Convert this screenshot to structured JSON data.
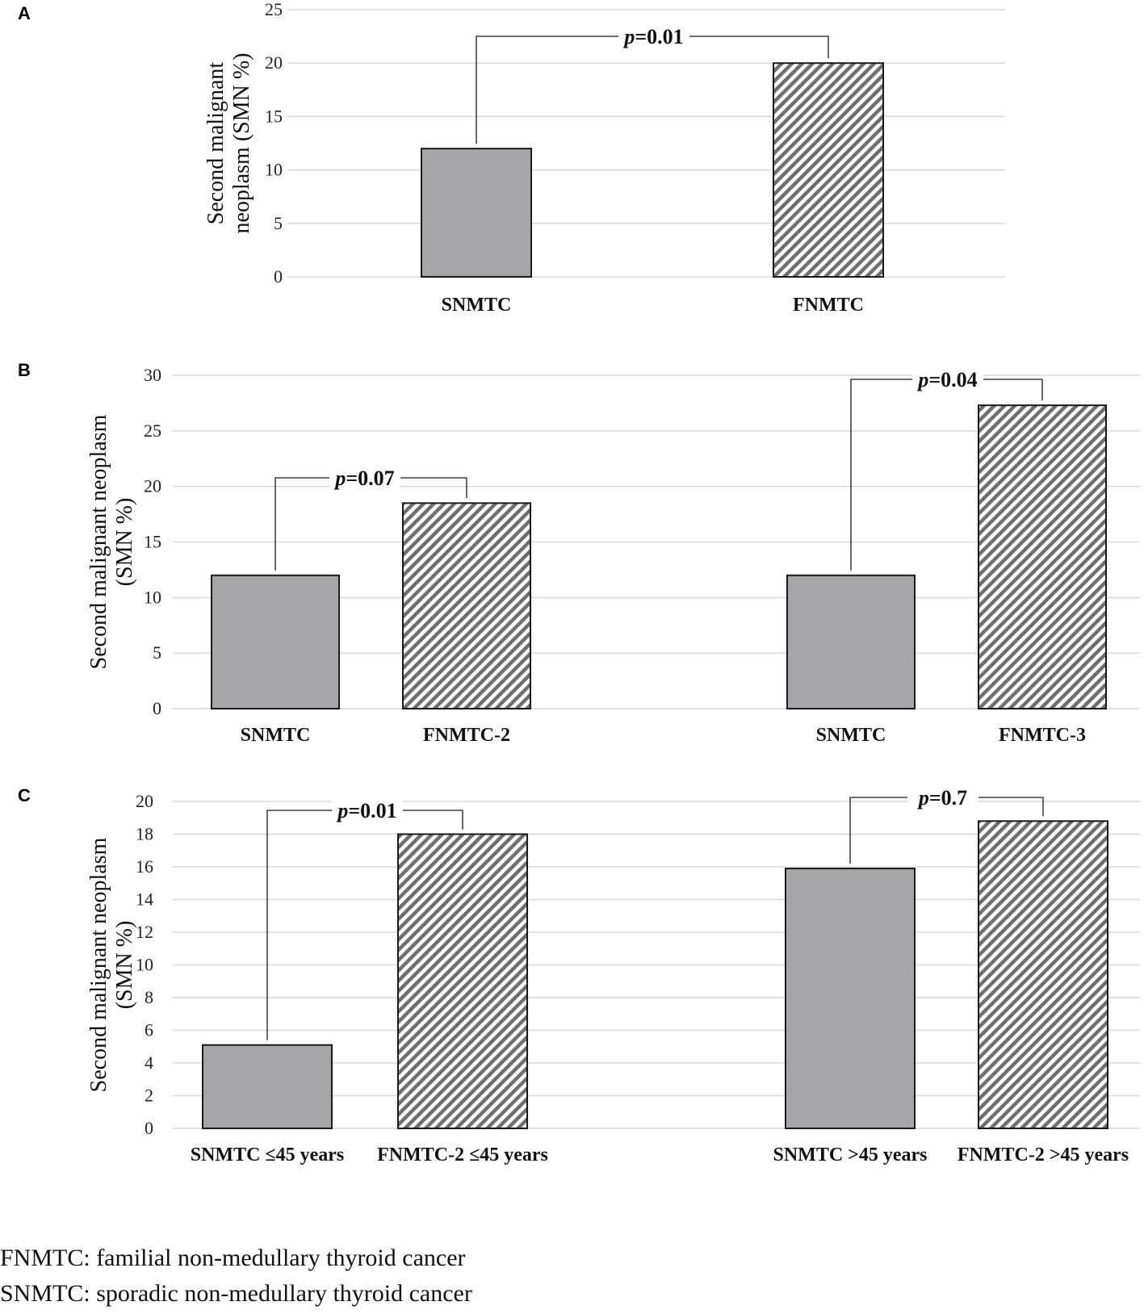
{
  "chart_data": [
    {
      "panel": "A",
      "type": "bar",
      "ylabel": [
        "Second malignant",
        "neoplasm  (SMN %)"
      ],
      "ylim": [
        0,
        25
      ],
      "yticks": [
        0,
        5,
        10,
        15,
        20,
        25
      ],
      "categories": [
        "SNMTC",
        "FNMTC"
      ],
      "values": [
        12,
        20
      ],
      "patterns": [
        "solid",
        "hatch"
      ],
      "annotations": [
        {
          "between": [
            0,
            1
          ],
          "label_prefix": "p",
          "label_value": "=0.01"
        }
      ]
    },
    {
      "panel": "B",
      "type": "bar",
      "ylabel": [
        "Second malignant neoplasm",
        "(SMN %)"
      ],
      "ylim": [
        0,
        30
      ],
      "yticks": [
        0,
        5,
        10,
        15,
        20,
        25,
        30
      ],
      "categories": [
        "SNMTC",
        "FNMTC-2",
        "SNMTC",
        "FNMTC-3"
      ],
      "values": [
        12,
        18.5,
        12,
        27.3
      ],
      "patterns": [
        "solid",
        "hatch",
        "solid",
        "hatch"
      ],
      "annotations": [
        {
          "between": [
            0,
            1
          ],
          "label_prefix": "p",
          "label_value": "=0.07"
        },
        {
          "between": [
            2,
            3
          ],
          "label_prefix": "p",
          "label_value": "=0.04"
        }
      ]
    },
    {
      "panel": "C",
      "type": "bar",
      "ylabel": [
        "Second malignant neoplasm",
        "(SMN %)"
      ],
      "ylim": [
        0,
        20
      ],
      "yticks": [
        0,
        2,
        4,
        6,
        8,
        10,
        12,
        14,
        16,
        18,
        20
      ],
      "categories": [
        "SNMTC ≤45 years",
        "FNMTC-2 ≤45 years",
        "SNMTC >45 years",
        "FNMTC-2 >45 years"
      ],
      "values": [
        5.1,
        18,
        15.9,
        18.8
      ],
      "patterns": [
        "solid",
        "hatch",
        "solid",
        "hatch"
      ],
      "annotations": [
        {
          "between": [
            0,
            1
          ],
          "label_prefix": "p",
          "label_value": "=0.01"
        },
        {
          "between": [
            2,
            3
          ],
          "label_prefix": "p",
          "label_value": "=0.7"
        }
      ]
    }
  ],
  "legend_notes": [
    "FNMTC: familial non-medullary thyroid cancer",
    "SNMTC: sporadic non-medullary thyroid cancer"
  ],
  "colors": {
    "solid_bar": "#a5a6aa",
    "outline": "#1a1a1a",
    "grid": "#d9d9d9"
  }
}
